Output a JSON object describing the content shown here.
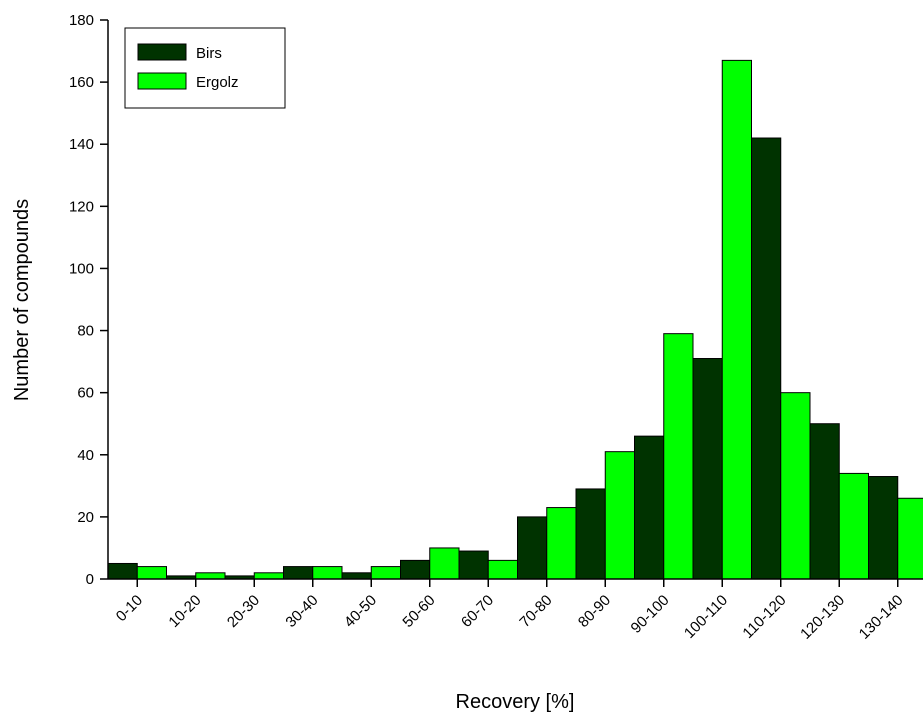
{
  "chart_data": {
    "type": "bar",
    "categories": [
      "0-10",
      "10-20",
      "20-30",
      "30-40",
      "40-50",
      "50-60",
      "60-70",
      "70-80",
      "80-90",
      "90-100",
      "100-110",
      "110-120",
      "120-130",
      "130-140"
    ],
    "series": [
      {
        "name": "Birs",
        "color": "#003300",
        "values": [
          5,
          1,
          1,
          4,
          2,
          6,
          9,
          20,
          29,
          46,
          71,
          142,
          50,
          33
        ]
      },
      {
        "name": "Ergolz",
        "color": "#00ff00",
        "values": [
          4,
          2,
          2,
          4,
          4,
          10,
          6,
          23,
          41,
          79,
          167,
          60,
          34,
          26
        ]
      }
    ],
    "xlabel": "Recovery [%]",
    "ylabel": "Number of compounds",
    "ylim": [
      0,
      180
    ],
    "yticks": [
      0,
      20,
      40,
      60,
      80,
      100,
      120,
      140,
      160,
      180
    ],
    "legend": "top-left",
    "grid": false
  }
}
